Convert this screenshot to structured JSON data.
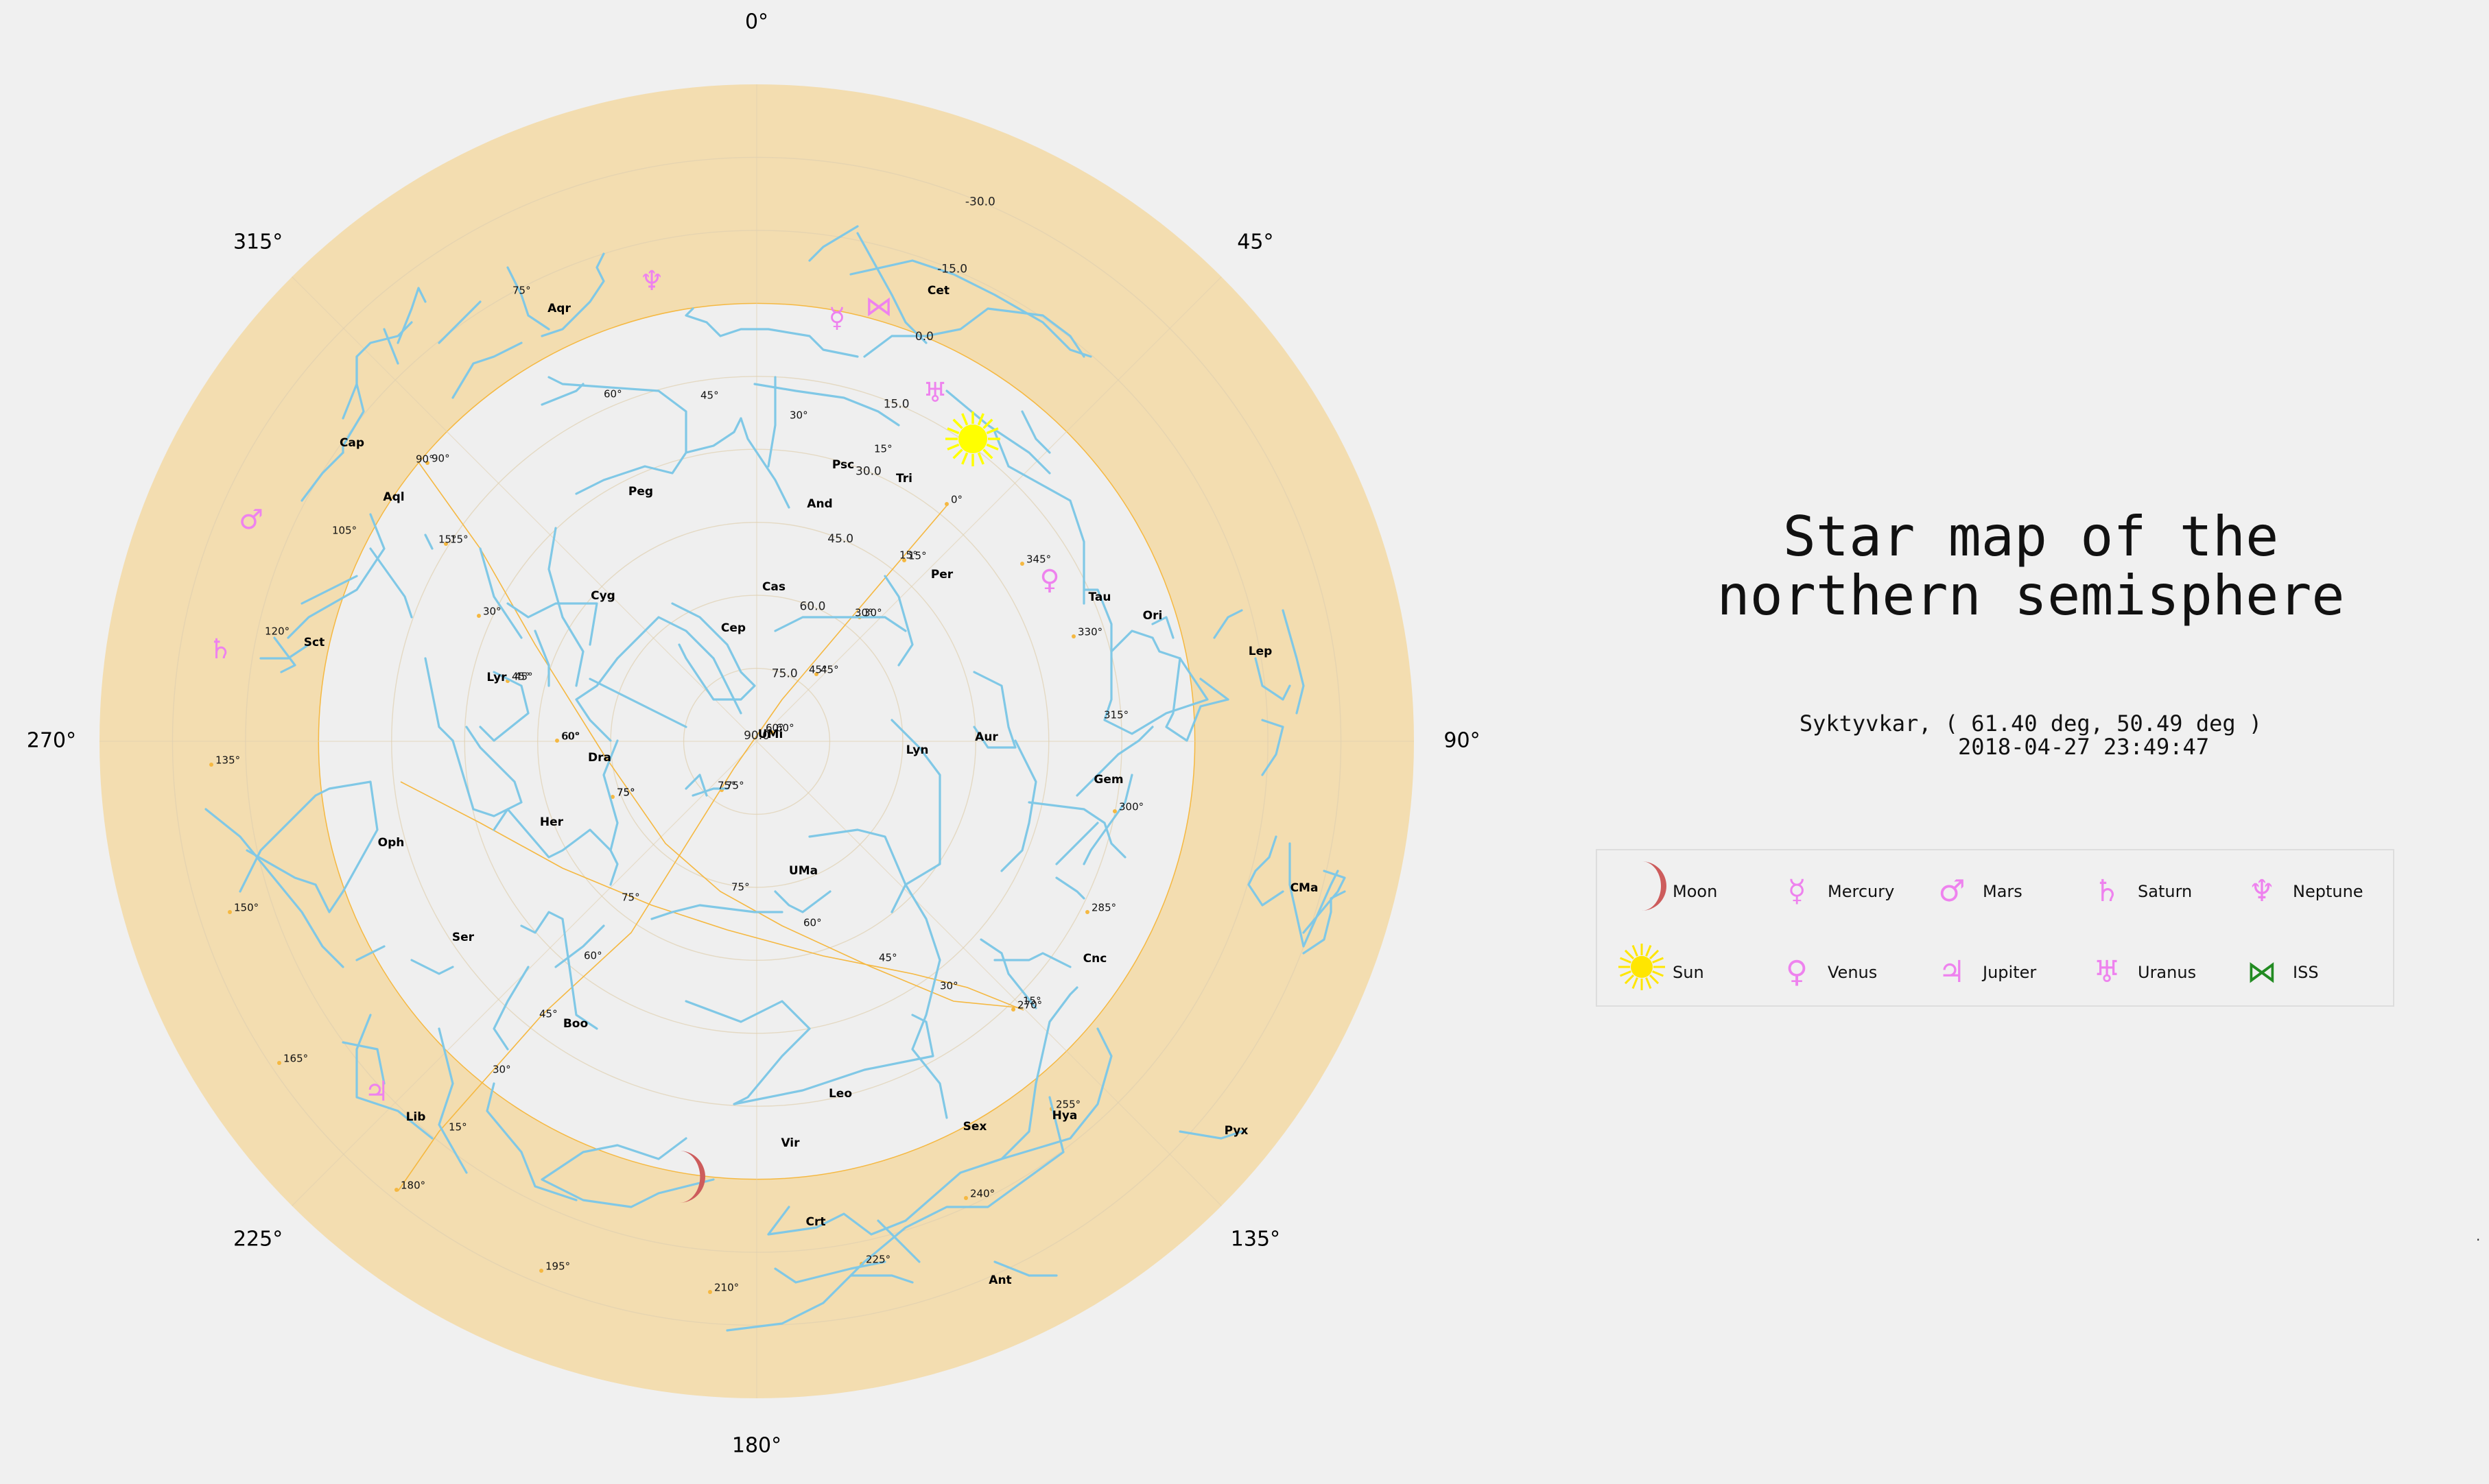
{
  "title": "Star map of the\nnorthern semisphere",
  "location_line": "Syktyvkar, ( 61.40 deg, 50.49 deg )",
  "time_line": "2018-04-27 23:49:47",
  "trailing_mark": ".",
  "colors": {
    "background": "#f0f0f0",
    "horizon_band": "#f3ddb0",
    "sky_disc": "#efefef",
    "grid": "#e0d0b0",
    "constellation": "#80c8e6",
    "ecliptic": "#f5b841",
    "planet": "#ee82ee",
    "moon": "#cd5c5c",
    "sun": "#ffff00",
    "iss": "#228b22"
  },
  "chart_data": {
    "type": "polar-sky-map",
    "azimuth_ticks": [
      "0°",
      "45°",
      "90°",
      "135°",
      "180°",
      "225°",
      "270°",
      "315°"
    ],
    "radial_ticks": [
      "-30.0",
      "-15.0",
      "0.0",
      "15.0",
      "30.0",
      "45.0",
      "60.0",
      "75.0",
      "90.0"
    ],
    "radial_range": [
      -45,
      90
    ],
    "constellations": [
      {
        "name": "UMi",
        "az": 360,
        "alt": 90
      },
      {
        "name": "Cet",
        "az": 21,
        "alt": -14
      },
      {
        "name": "Psc",
        "az": 18,
        "alt": 17
      },
      {
        "name": "Tri",
        "az": 30,
        "alt": 17
      },
      {
        "name": "And",
        "az": 14,
        "alt": 29
      },
      {
        "name": "Cas",
        "az": 8,
        "alt": 65
      },
      {
        "name": "Cep",
        "az": 330,
        "alt": 70
      },
      {
        "name": "Per",
        "az": 47,
        "alt": 37
      },
      {
        "name": "Tau",
        "az": 65,
        "alt": 8
      },
      {
        "name": "Ori",
        "az": 74,
        "alt": -1
      },
      {
        "name": "Lep",
        "az": 83,
        "alt": -18
      },
      {
        "name": "Aur",
        "az": 85,
        "alt": 43
      },
      {
        "name": "Lyn",
        "az": 95,
        "alt": 65
      },
      {
        "name": "Gem",
        "az": 94,
        "alt": 14
      },
      {
        "name": "CMa",
        "az": 104,
        "alt": -20
      },
      {
        "name": "Cnc",
        "az": 113,
        "alt": 22
      },
      {
        "name": "UMa",
        "az": 168,
        "alt": 70
      },
      {
        "name": "Hya",
        "az": 134,
        "alt": 10
      },
      {
        "name": "Pyx",
        "az": 121,
        "alt": -16
      },
      {
        "name": "Sex",
        "az": 149,
        "alt": 21
      },
      {
        "name": "Leo",
        "az": 164,
        "alt": 32
      },
      {
        "name": "Ant",
        "az": 156,
        "alt": -7
      },
      {
        "name": "Crt",
        "az": 172,
        "alt": 3
      },
      {
        "name": "Vir",
        "az": 187,
        "alt": 18
      },
      {
        "name": "Boo",
        "az": 208,
        "alt": 37
      },
      {
        "name": "Lib",
        "az": 219,
        "alt": 7
      },
      {
        "name": "Ser",
        "az": 235,
        "alt": 21
      },
      {
        "name": "Oph",
        "az": 248,
        "alt": 14
      },
      {
        "name": "Her",
        "az": 237,
        "alt": 42
      },
      {
        "name": "Dra",
        "az": 255,
        "alt": 64
      },
      {
        "name": "Lyr",
        "az": 295,
        "alt": 49
      },
      {
        "name": "Cyg",
        "az": 309,
        "alt": 44
      },
      {
        "name": "Sct",
        "az": 290,
        "alt": 2
      },
      {
        "name": "Aql",
        "az": 315,
        "alt": 15
      },
      {
        "name": "Cap",
        "az": 323,
        "alt": -4
      },
      {
        "name": "Peg",
        "az": 345,
        "alt": 33
      },
      {
        "name": "Aqr",
        "az": 339,
        "alt": -14
      }
    ],
    "ecliptic_ticks": [
      "0°",
      "15°",
      "30°",
      "45°",
      "60°",
      "75°",
      "90°",
      "105°",
      "120°",
      "135°",
      "150°",
      "165°",
      "180°",
      "195°",
      "210°",
      "225°",
      "240°",
      "255°",
      "270°",
      "285°",
      "300°",
      "315°",
      "330°",
      "345°"
    ],
    "equator_ticks": [
      "0°",
      "15°",
      "30°",
      "45°",
      "60°",
      "75°"
    ],
    "bodies": [
      {
        "name": "Moon",
        "az": 188,
        "alt": 9
      },
      {
        "name": "Sun",
        "az": 40,
        "alt": 0
      },
      {
        "name": "Mercury",
        "az": 20,
        "alt": -9
      },
      {
        "name": "Venus",
        "az": 58,
        "alt": 8
      },
      {
        "name": "Mars",
        "az": 295,
        "alt": -14
      },
      {
        "name": "Jupiter",
        "az": 225,
        "alt": 2
      },
      {
        "name": "Saturn",
        "az": 285,
        "alt": -14
      },
      {
        "name": "Uranus",
        "az": 32,
        "alt": 1
      },
      {
        "name": "Neptune",
        "az": 341,
        "alt": -25
      },
      {
        "name": "ISS",
        "az": 20,
        "alt": -14
      }
    ]
  },
  "legend": [
    {
      "label": "Moon",
      "symbol": "☽",
      "color": "#cd5c5c"
    },
    {
      "label": "Mercury",
      "symbol": "☿",
      "color": "#ee82ee"
    },
    {
      "label": "Mars",
      "symbol": "♂",
      "color": "#ee82ee"
    },
    {
      "label": "Saturn",
      "symbol": "♄",
      "color": "#ee82ee"
    },
    {
      "label": "Neptune",
      "symbol": "♆",
      "color": "#ee82ee"
    },
    {
      "label": "Sun",
      "symbol": "☀",
      "color": "#ffe600"
    },
    {
      "label": "Venus",
      "symbol": "♀",
      "color": "#ee82ee"
    },
    {
      "label": "Jupiter",
      "symbol": "♃",
      "color": "#ee82ee"
    },
    {
      "label": "Uranus",
      "symbol": "♅",
      "color": "#ee82ee"
    },
    {
      "label": "ISS",
      "symbol": "⋈",
      "color": "#228b22"
    }
  ]
}
